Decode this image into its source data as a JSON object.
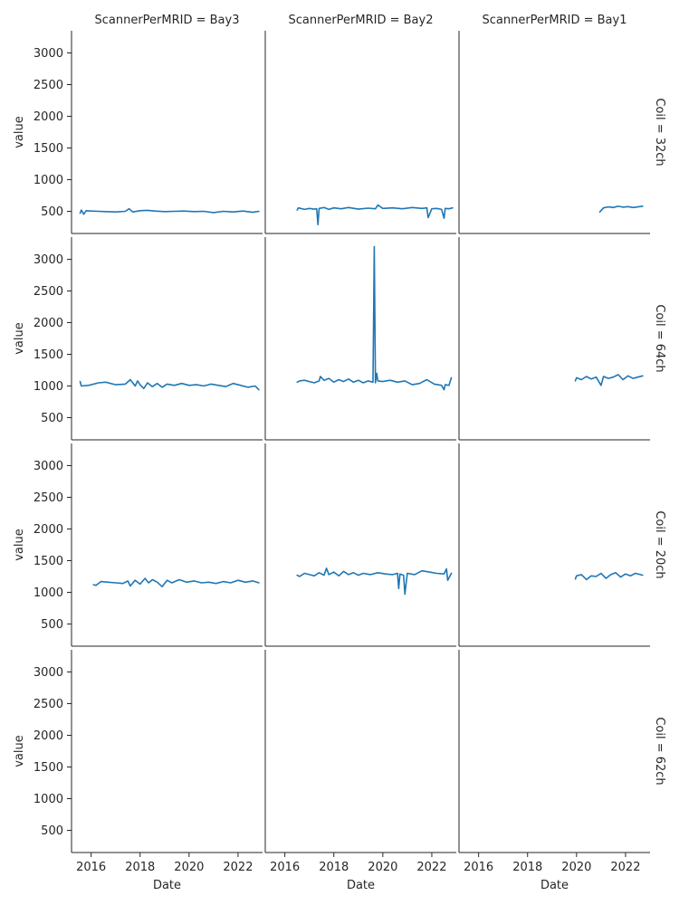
{
  "chart_data": {
    "type": "line",
    "column_facet_title_template": "ScannerPerMRID = {col}",
    "row_facet_title_template": "Coil = {row}",
    "columns": [
      "Bay3",
      "Bay2",
      "Bay1"
    ],
    "rows": [
      "32ch",
      "64ch",
      "20ch",
      "62ch"
    ],
    "xlabel": "Date",
    "ylabel": "value",
    "x_ticks": [
      "2016",
      "2018",
      "2020",
      "2022"
    ],
    "y_ticks": [
      500,
      1000,
      1500,
      2000,
      2500,
      3000
    ],
    "xlim": [
      2015.2,
      2023.0
    ],
    "ylim": [
      150,
      3350
    ],
    "grid": false,
    "series_color": "#1f77b4",
    "panels": [
      {
        "row": "32ch",
        "col": "Bay3",
        "x": [
          2015.55,
          2015.6,
          2015.7,
          2015.8,
          2016.0,
          2016.3,
          2016.6,
          2017.0,
          2017.4,
          2017.55,
          2017.7,
          2018.0,
          2018.3,
          2018.6,
          2019.0,
          2019.4,
          2019.8,
          2020.2,
          2020.6,
          2021.0,
          2021.4,
          2021.8,
          2022.2,
          2022.6,
          2022.85
        ],
        "y": [
          470,
          520,
          455,
          510,
          505,
          500,
          495,
          490,
          500,
          540,
          490,
          510,
          515,
          505,
          495,
          500,
          505,
          495,
          500,
          480,
          500,
          490,
          505,
          485,
          500
        ]
      },
      {
        "row": "32ch",
        "col": "Bay2",
        "x": [
          2016.5,
          2016.55,
          2016.8,
          2017.0,
          2017.2,
          2017.3,
          2017.35,
          2017.4,
          2017.6,
          2017.8,
          2018.0,
          2018.3,
          2018.6,
          2019.0,
          2019.4,
          2019.7,
          2019.8,
          2020.0,
          2020.4,
          2020.8,
          2021.2,
          2021.6,
          2021.8,
          2021.85,
          2022.0,
          2022.2,
          2022.4,
          2022.5,
          2022.55,
          2022.7,
          2022.85
        ],
        "y": [
          520,
          555,
          530,
          545,
          535,
          540,
          290,
          545,
          560,
          530,
          555,
          540,
          560,
          535,
          550,
          540,
          600,
          545,
          555,
          540,
          560,
          545,
          555,
          400,
          540,
          545,
          530,
          390,
          545,
          540,
          555
        ]
      },
      {
        "row": "32ch",
        "col": "Bay1",
        "x": [
          2020.95,
          2021.1,
          2021.3,
          2021.5,
          2021.7,
          2021.9,
          2022.1,
          2022.3,
          2022.5,
          2022.7
        ],
        "y": [
          490,
          555,
          570,
          560,
          580,
          565,
          575,
          560,
          570,
          580
        ]
      },
      {
        "row": "64ch",
        "col": "Bay3",
        "x": [
          2015.55,
          2015.6,
          2015.9,
          2016.3,
          2016.6,
          2017.0,
          2017.4,
          2017.6,
          2017.8,
          2017.9,
          2018.0,
          2018.15,
          2018.3,
          2018.5,
          2018.7,
          2018.9,
          2019.1,
          2019.4,
          2019.7,
          2020.0,
          2020.3,
          2020.6,
          2020.9,
          2021.2,
          2021.5,
          2021.8,
          2022.1,
          2022.4,
          2022.7,
          2022.85
        ],
        "y": [
          1070,
          1000,
          1010,
          1050,
          1060,
          1020,
          1030,
          1100,
          1000,
          1080,
          1020,
          960,
          1050,
          990,
          1040,
          980,
          1030,
          1010,
          1040,
          1010,
          1020,
          1000,
          1030,
          1010,
          990,
          1040,
          1010,
          980,
          1000,
          940
        ]
      },
      {
        "row": "64ch",
        "col": "Bay2",
        "x": [
          2016.5,
          2016.6,
          2016.8,
          2017.0,
          2017.2,
          2017.4,
          2017.45,
          2017.6,
          2017.8,
          2018.0,
          2018.2,
          2018.4,
          2018.6,
          2018.8,
          2019.0,
          2019.2,
          2019.4,
          2019.6,
          2019.65,
          2019.7,
          2019.75,
          2019.8,
          2020.0,
          2020.3,
          2020.6,
          2020.9,
          2021.2,
          2021.5,
          2021.8,
          2022.1,
          2022.4,
          2022.5,
          2022.55,
          2022.7,
          2022.8
        ],
        "y": [
          1060,
          1080,
          1090,
          1070,
          1050,
          1080,
          1150,
          1090,
          1120,
          1060,
          1100,
          1070,
          1110,
          1060,
          1090,
          1050,
          1080,
          1060,
          3200,
          1050,
          1200,
          1080,
          1070,
          1090,
          1060,
          1080,
          1020,
          1040,
          1100,
          1030,
          1010,
          940,
          1020,
          1010,
          1130
        ]
      },
      {
        "row": "64ch",
        "col": "Bay1",
        "x": [
          2019.95,
          2020.0,
          2020.2,
          2020.4,
          2020.6,
          2020.8,
          2021.0,
          2021.1,
          2021.3,
          2021.5,
          2021.7,
          2021.9,
          2022.1,
          2022.3,
          2022.5,
          2022.7
        ],
        "y": [
          1080,
          1130,
          1100,
          1150,
          1110,
          1140,
          1010,
          1150,
          1120,
          1140,
          1180,
          1100,
          1160,
          1120,
          1140,
          1160
        ]
      },
      {
        "row": "20ch",
        "col": "Bay3",
        "x": [
          2016.1,
          2016.2,
          2016.4,
          2016.7,
          2017.0,
          2017.3,
          2017.5,
          2017.6,
          2017.8,
          2018.0,
          2018.2,
          2018.35,
          2018.5,
          2018.7,
          2018.9,
          2019.1,
          2019.3,
          2019.6,
          2019.9,
          2020.2,
          2020.5,
          2020.8,
          2021.1,
          2021.4,
          2021.7,
          2022.0,
          2022.3,
          2022.6,
          2022.85
        ],
        "y": [
          1120,
          1110,
          1170,
          1160,
          1150,
          1140,
          1180,
          1100,
          1190,
          1130,
          1220,
          1150,
          1200,
          1160,
          1090,
          1190,
          1150,
          1200,
          1160,
          1180,
          1150,
          1160,
          1140,
          1170,
          1150,
          1190,
          1160,
          1180,
          1150
        ]
      },
      {
        "row": "20ch",
        "col": "Bay2",
        "x": [
          2016.5,
          2016.6,
          2016.8,
          2017.0,
          2017.2,
          2017.4,
          2017.6,
          2017.7,
          2017.8,
          2018.0,
          2018.2,
          2018.4,
          2018.6,
          2018.8,
          2019.0,
          2019.2,
          2019.5,
          2019.8,
          2020.1,
          2020.4,
          2020.6,
          2020.65,
          2020.7,
          2020.85,
          2020.9,
          2021.0,
          2021.3,
          2021.6,
          2021.9,
          2022.2,
          2022.5,
          2022.6,
          2022.65,
          2022.8
        ],
        "y": [
          1270,
          1250,
          1300,
          1280,
          1260,
          1310,
          1270,
          1380,
          1280,
          1320,
          1260,
          1330,
          1280,
          1310,
          1270,
          1300,
          1280,
          1310,
          1290,
          1280,
          1300,
          1060,
          1290,
          1270,
          970,
          1300,
          1280,
          1340,
          1320,
          1300,
          1290,
          1370,
          1190,
          1300
        ]
      },
      {
        "row": "20ch",
        "col": "Bay1",
        "x": [
          2019.95,
          2020.0,
          2020.2,
          2020.4,
          2020.6,
          2020.8,
          2021.0,
          2021.2,
          2021.4,
          2021.6,
          2021.8,
          2022.0,
          2022.2,
          2022.4,
          2022.6,
          2022.7
        ],
        "y": [
          1210,
          1260,
          1280,
          1200,
          1260,
          1250,
          1300,
          1220,
          1280,
          1310,
          1240,
          1290,
          1260,
          1300,
          1280,
          1270
        ]
      },
      {
        "row": "62ch",
        "col": "Bay3",
        "x": [],
        "y": []
      },
      {
        "row": "62ch",
        "col": "Bay2",
        "x": [],
        "y": []
      },
      {
        "row": "62ch",
        "col": "Bay1",
        "x": [],
        "y": []
      }
    ]
  }
}
